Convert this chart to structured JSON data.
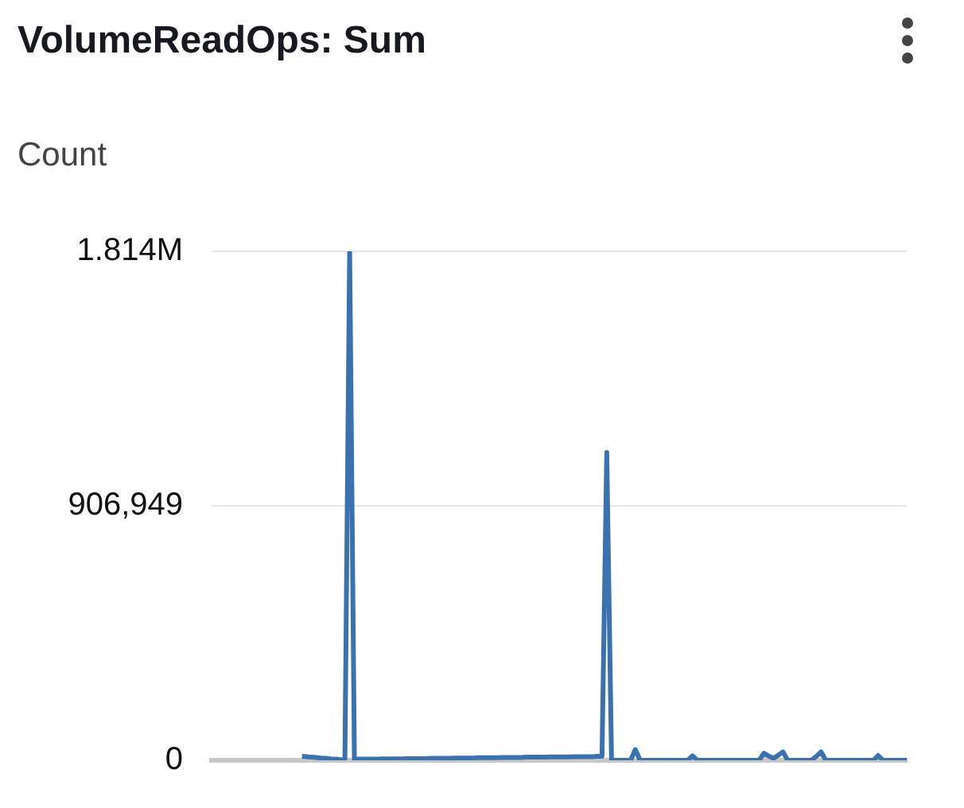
{
  "chart_data": {
    "type": "line",
    "title": "VolumeReadOps: Sum",
    "ylabel": "Count",
    "categories": [
      null,
      null,
      null,
      null,
      null,
      null,
      null,
      null,
      null,
      null,
      null,
      null,
      null,
      null,
      null,
      null,
      null,
      null,
      null,
      null,
      null,
      null,
      null,
      null,
      null,
      null,
      null,
      null,
      null,
      null,
      null,
      null,
      null,
      null,
      null,
      null,
      null,
      null,
      null,
      null,
      null,
      null,
      null,
      null,
      null,
      null,
      null,
      null,
      null,
      null,
      null,
      null,
      null,
      null,
      null,
      null,
      null,
      null,
      null,
      null,
      null,
      null,
      null,
      null,
      null,
      null,
      null,
      null,
      null,
      null,
      null,
      null,
      null,
      null,
      null,
      null,
      null,
      null,
      null,
      null,
      null,
      null,
      null,
      null,
      null,
      null,
      null,
      null,
      null,
      null,
      null,
      null,
      null,
      null,
      null,
      null,
      null,
      null,
      null,
      null,
      null,
      null,
      null,
      null,
      null,
      null,
      null,
      null,
      null,
      null,
      null,
      null,
      null,
      null,
      null,
      null,
      null,
      null,
      null,
      null,
      null,
      null,
      null,
      null,
      null,
      null,
      null,
      null,
      null,
      null,
      null,
      null,
      null,
      null,
      null,
      null,
      null,
      null,
      null,
      null,
      null,
      null,
      null,
      null,
      null,
      null,
      null
    ],
    "series": [
      {
        "color": "#3a72b0",
        "values": [
          null,
          null,
          null,
          null,
          null,
          null,
          null,
          null,
          null,
          null,
          null,
          null,
          null,
          null,
          null,
          null,
          null,
          null,
          null,
          14000,
          13000,
          11000,
          10000,
          8000,
          7000,
          5000,
          4000,
          2000,
          0,
          1813898,
          4000,
          4000,
          4000,
          4000,
          4000,
          4000,
          5000,
          5000,
          5000,
          5000,
          5000,
          6000,
          6000,
          6000,
          6000,
          6000,
          7000,
          7000,
          7000,
          7000,
          7000,
          8000,
          8000,
          8000,
          8000,
          8000,
          9000,
          9000,
          9000,
          9000,
          9000,
          10000,
          10000,
          10000,
          10000,
          10000,
          11000,
          11000,
          11000,
          11000,
          11000,
          12000,
          12000,
          12000,
          12000,
          12000,
          13000,
          13000,
          13000,
          13000,
          13000,
          14000,
          14000,
          1097000,
          0,
          0,
          0,
          0,
          0,
          38000,
          0,
          0,
          0,
          0,
          0,
          0,
          0,
          0,
          0,
          0,
          0,
          16000,
          0,
          0,
          0,
          0,
          0,
          0,
          0,
          0,
          0,
          0,
          0,
          0,
          0,
          0,
          25000,
          15000,
          7000,
          18000,
          30000,
          0,
          0,
          0,
          0,
          0,
          0,
          14000,
          30000,
          0,
          0,
          0,
          0,
          0,
          0,
          0,
          0,
          0,
          0,
          0,
          17000,
          0,
          0,
          0,
          0,
          0,
          0
        ]
      }
    ],
    "ylim": [
      0,
      1813898
    ],
    "yticks": [
      0,
      {
        "value": 906949,
        "label": "906,949"
      },
      {
        "value": 1813898,
        "label": "1.814M"
      }
    ],
    "grid": "y",
    "tick_labels": "y"
  }
}
